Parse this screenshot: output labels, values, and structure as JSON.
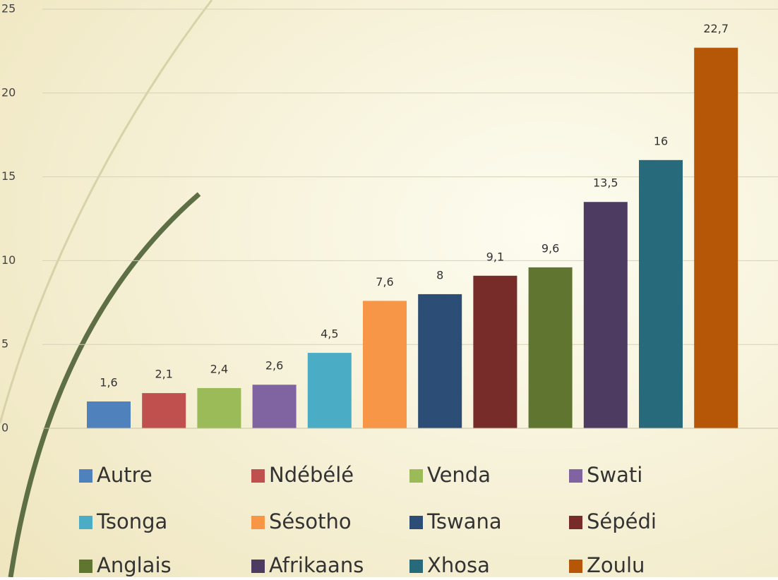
{
  "chart_data": {
    "type": "bar",
    "ylim": [
      0,
      25
    ],
    "yticks": [
      0,
      5,
      10,
      15,
      20,
      25
    ],
    "grid": true,
    "series": [
      {
        "name": "Autre",
        "color": "#4f81bd",
        "values": [
          1.6
        ],
        "value_labels": [
          "1,6"
        ]
      },
      {
        "name": "Ndébélé",
        "color": "#c0504d",
        "values": [
          2.1
        ],
        "value_labels": [
          "2,1"
        ]
      },
      {
        "name": "Venda",
        "color": "#9bbb59",
        "values": [
          2.4
        ],
        "value_labels": [
          "2,4"
        ]
      },
      {
        "name": "Swati",
        "color": "#8064a2",
        "values": [
          2.6
        ],
        "value_labels": [
          "2,6"
        ]
      },
      {
        "name": "Tsonga",
        "color": "#4bacc6",
        "values": [
          4.5
        ],
        "value_labels": [
          "4,5"
        ]
      },
      {
        "name": "Sésotho",
        "color": "#f79646",
        "values": [
          7.6
        ],
        "value_labels": [
          "7,6"
        ]
      },
      {
        "name": "Tswana",
        "color": "#2c4d75",
        "values": [
          8
        ]
      },
      {
        "name": "Sépédi",
        "color": "#772c2a",
        "values": [
          9.1
        ],
        "value_labels": [
          "9,1"
        ]
      },
      {
        "name": "Anglais",
        "color": "#5f7530",
        "values": [
          9.6
        ],
        "value_labels": [
          "9,6"
        ]
      },
      {
        "name": "Afrikaans",
        "color": "#4d3b62",
        "values": [
          13.5
        ],
        "value_labels": [
          "13,5"
        ]
      },
      {
        "name": "Xhosa",
        "color": "#276a7c",
        "values": [
          16
        ]
      },
      {
        "name": "Zoulu",
        "color": "#b65708",
        "values": [
          22.7
        ],
        "value_labels": [
          "22,7"
        ]
      }
    ]
  }
}
